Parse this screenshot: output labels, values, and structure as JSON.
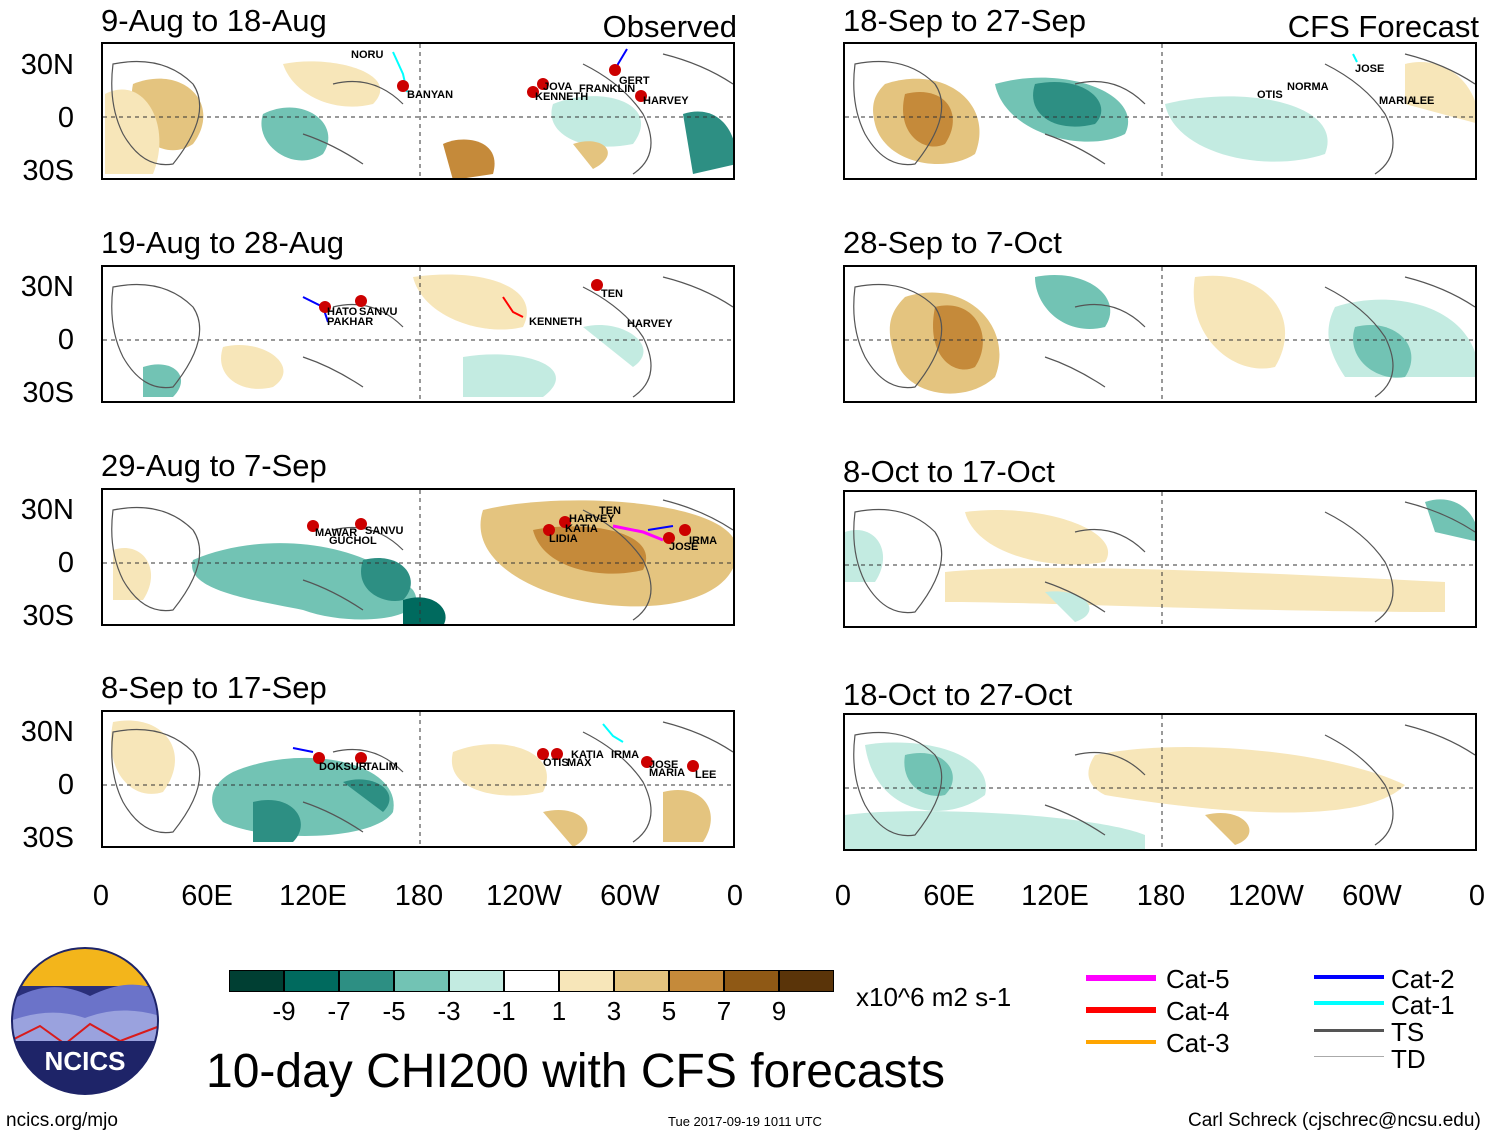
{
  "observed_label": "Observed",
  "forecast_label": "CFS Forecast",
  "panels": [
    {
      "title": "9-Aug to 18-Aug",
      "storms": [
        "NORU",
        "BANYAN",
        "JOVA",
        "KENNETH",
        "FRANKLIN",
        "GERT",
        "HARVEY"
      ]
    },
    {
      "title": "19-Aug to 28-Aug",
      "storms": [
        "HATO",
        "SANVU",
        "PAKHAR",
        "KENNETH",
        "TEN",
        "HARVEY"
      ]
    },
    {
      "title": "29-Aug to 7-Sep",
      "storms": [
        "MAWAR",
        "GUCHOL",
        "SANVU",
        "LIDIA",
        "KATIA",
        "HARVEY",
        "TEN",
        "IRMA",
        "JOSE"
      ]
    },
    {
      "title": "8-Sep to 17-Sep",
      "storms": [
        "DOKSURI",
        "TALIM",
        "OTIS",
        "MAX",
        "KATIA",
        "IRMA",
        "JOSE",
        "MARIA",
        "LEE"
      ]
    },
    {
      "title": "18-Sep to 27-Sep",
      "storms": [
        "JOSE",
        "OTIS",
        "NORMA",
        "MARIA",
        "LEE"
      ]
    },
    {
      "title": "28-Sep to 7-Oct",
      "storms": []
    },
    {
      "title": "8-Oct to 17-Oct",
      "storms": []
    },
    {
      "title": "18-Oct to 27-Oct",
      "storms": []
    }
  ],
  "lat_labels": [
    "30N",
    "0",
    "30S"
  ],
  "lon_labels": [
    "0",
    "60E",
    "120E",
    "180",
    "120W",
    "60W",
    "0"
  ],
  "colorbar": {
    "colors": [
      "#003f33",
      "#006a5e",
      "#2d8f83",
      "#72c3b4",
      "#c3ebe1",
      "#ffffff",
      "#f7e6b9",
      "#e4c47f",
      "#c58a3a",
      "#8f5915",
      "#5a3409"
    ],
    "labels": [
      "-9",
      "-7",
      "-5",
      "-3",
      "-1",
      "1",
      "3",
      "5",
      "7",
      "9"
    ],
    "units": "x10^6 m2 s-1"
  },
  "legend": [
    {
      "label": "Cat-5",
      "color": "#ff00ff"
    },
    {
      "label": "Cat-4",
      "color": "#ff0000"
    },
    {
      "label": "Cat-3",
      "color": "#ffa500"
    },
    {
      "label": "Cat-2",
      "color": "#0000ff"
    },
    {
      "label": "Cat-1",
      "color": "#00ffff"
    },
    {
      "label": "TS",
      "color": "#555555"
    },
    {
      "label": "TD",
      "color": "#aaaaaa"
    }
  ],
  "title": "10-day CHI200 with CFS forecasts",
  "footer": {
    "left": "ncics.org/mjo",
    "center": "Tue 2017-09-19 1011 UTC",
    "right": "Carl Schreck (cjschrec@ncsu.edu)"
  },
  "logo_text": "NCICS"
}
